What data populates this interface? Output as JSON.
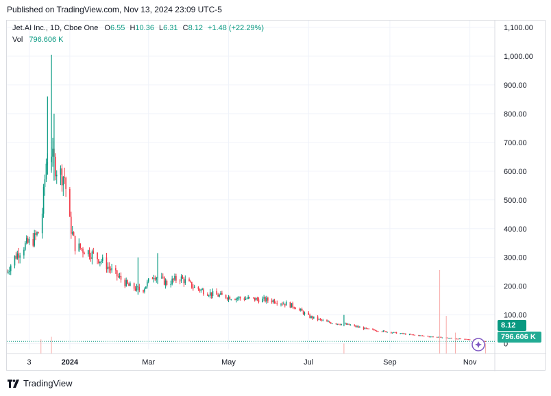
{
  "header": {
    "published": "Published on TradingView.com, Nov 13, 2024 23:09 UTC-5"
  },
  "legend": {
    "symbol": "Jet.AI Inc., 1D, Cboe One",
    "open_label": "O",
    "open": "6.55",
    "high_label": "H",
    "high": "10.36",
    "low_label": "L",
    "low": "6.31",
    "close_label": "C",
    "close": "8.12",
    "change": "+1.48 (+22.29%)",
    "vol_label": "Vol",
    "vol": "796.606 K"
  },
  "badges": {
    "price": "8.12",
    "volume": "796.606 K"
  },
  "footer": {
    "brand": "TradingView",
    "logo_icon": "tradingview-logo-icon"
  },
  "colors": {
    "up": "#089981",
    "down": "#f23645",
    "grid": "#f0f3fa",
    "text": "#131722",
    "last_price_line": "#089981",
    "assistant_icon": "#7e57c2"
  },
  "chart_data": {
    "type": "candlestick",
    "title": "",
    "xlabel": "",
    "ylabel": "",
    "ylim": [
      -20,
      1100
    ],
    "y_ticks": [
      0,
      100,
      200,
      300,
      400,
      500,
      600,
      700,
      800,
      900,
      1000,
      1100
    ],
    "y_tick_labels": [
      "0",
      "100.00",
      "200.00",
      "300.00",
      "400.00",
      "500.00",
      "600.00",
      "700.00",
      "800.00",
      "900.00",
      "1,000.00",
      "1,100.00"
    ],
    "x_ticks": [
      "2023-12-01",
      "2024-01-01",
      "2024-03-01",
      "2024-05-01",
      "2024-07-01",
      "2024-09-01",
      "2024-11-01"
    ],
    "x_tick_labels": [
      "3",
      "2024",
      "Mar",
      "May",
      "Jul",
      "Sep",
      "Nov"
    ],
    "x_range": [
      "2023-11-14",
      "2024-11-20"
    ],
    "last_price": 8.12,
    "price_path": [
      [
        "2023-11-14",
        250
      ],
      [
        "2023-11-20",
        300
      ],
      [
        "2023-11-27",
        340
      ],
      [
        "2023-12-04",
        360
      ],
      [
        "2023-12-10",
        400
      ],
      [
        "2023-12-14",
        630
      ],
      [
        "2023-12-17",
        700
      ],
      [
        "2023-12-19",
        640
      ],
      [
        "2023-12-23",
        600
      ],
      [
        "2023-12-28",
        580
      ],
      [
        "2024-01-01",
        420
      ],
      [
        "2024-01-05",
        340
      ],
      [
        "2024-01-15",
        320
      ],
      [
        "2024-01-25",
        290
      ],
      [
        "2024-02-05",
        240
      ],
      [
        "2024-02-15",
        200
      ],
      [
        "2024-02-25",
        185
      ],
      [
        "2024-03-05",
        240
      ],
      [
        "2024-03-15",
        210
      ],
      [
        "2024-03-25",
        230
      ],
      [
        "2024-04-05",
        195
      ],
      [
        "2024-04-20",
        170
      ],
      [
        "2024-05-05",
        160
      ],
      [
        "2024-05-20",
        155
      ],
      [
        "2024-06-05",
        150
      ],
      [
        "2024-06-20",
        130
      ],
      [
        "2024-07-01",
        95
      ],
      [
        "2024-07-15",
        75
      ],
      [
        "2024-08-01",
        65
      ],
      [
        "2024-08-15",
        50
      ],
      [
        "2024-09-01",
        40
      ],
      [
        "2024-09-15",
        32
      ],
      [
        "2024-10-01",
        25
      ],
      [
        "2024-10-15",
        20
      ],
      [
        "2024-11-01",
        14
      ],
      [
        "2024-11-13",
        8.12
      ]
    ],
    "price_spikes": [
      [
        "2023-12-15",
        860
      ],
      [
        "2023-12-18",
        1005
      ],
      [
        "2023-12-20",
        800
      ],
      [
        "2024-02-22",
        300
      ],
      [
        "2024-03-08",
        315
      ],
      [
        "2024-07-28",
        100
      ]
    ],
    "volume_spikes": [
      [
        "2023-12-10",
        0.17
      ],
      [
        "2023-12-18",
        0.2
      ],
      [
        "2024-07-28",
        0.12
      ],
      [
        "2024-10-09",
        1.0
      ],
      [
        "2024-10-14",
        0.45
      ],
      [
        "2024-10-21",
        0.25
      ],
      [
        "2024-11-13",
        0.12
      ]
    ]
  }
}
